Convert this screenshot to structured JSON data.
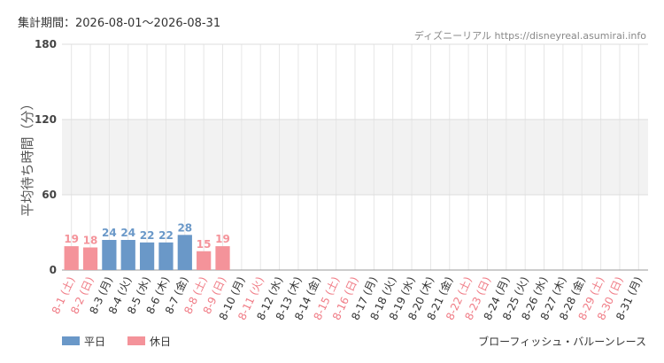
{
  "chart_data": {
    "type": "bar",
    "title": "集計期間：2026-08-01～2026-08-31",
    "credit": "ディズニーリアル https://disneyreal.asumirai.info",
    "ylabel": "平均待ち時間（分）",
    "attraction": "ブローフィッシュ・バルーンレース",
    "categories": [
      "8-1 (土)",
      "8-2 (日)",
      "8-3 (月)",
      "8-4 (火)",
      "8-5 (水)",
      "8-6 (木)",
      "8-7 (金)",
      "8-8 (土)",
      "8-9 (日)",
      "8-10 (月)",
      "8-11 (火)",
      "8-12 (水)",
      "8-13 (木)",
      "8-14 (金)",
      "8-15 (土)",
      "8-16 (日)",
      "8-17 (月)",
      "8-18 (火)",
      "8-19 (水)",
      "8-20 (木)",
      "8-21 (金)",
      "8-22 (土)",
      "8-23 (日)",
      "8-24 (月)",
      "8-25 (火)",
      "8-26 (水)",
      "8-27 (木)",
      "8-28 (金)",
      "8-29 (土)",
      "8-30 (日)",
      "8-31 (月)"
    ],
    "label_colors": [
      "#f07b85",
      "#f07b85",
      "#333333",
      "#333333",
      "#333333",
      "#333333",
      "#333333",
      "#f07b85",
      "#f07b85",
      "#333333",
      "#f07b85",
      "#333333",
      "#333333",
      "#333333",
      "#f07b85",
      "#f07b85",
      "#333333",
      "#333333",
      "#333333",
      "#333333",
      "#333333",
      "#f07b85",
      "#f07b85",
      "#333333",
      "#333333",
      "#333333",
      "#333333",
      "#333333",
      "#f07b85",
      "#f07b85",
      "#333333"
    ],
    "series": [
      {
        "name": "平日",
        "color": "#6a98c8",
        "values": [
          null,
          null,
          24,
          24,
          22,
          22,
          28,
          null,
          null,
          null,
          null,
          null,
          null,
          null,
          null,
          null,
          null,
          null,
          null,
          null,
          null,
          null,
          null,
          null,
          null,
          null,
          null,
          null,
          null,
          null,
          null
        ]
      },
      {
        "name": "休日",
        "color": "#f4939a",
        "values": [
          19,
          18,
          null,
          null,
          null,
          null,
          null,
          15,
          19,
          null,
          null,
          null,
          null,
          null,
          null,
          null,
          null,
          null,
          null,
          null,
          null,
          null,
          null,
          null,
          null,
          null,
          null,
          null,
          null,
          null,
          null
        ]
      }
    ],
    "ylim": [
      0,
      180
    ],
    "yticks": [
      0,
      60,
      120,
      180
    ],
    "grid": true,
    "legend": "bottom-left"
  }
}
